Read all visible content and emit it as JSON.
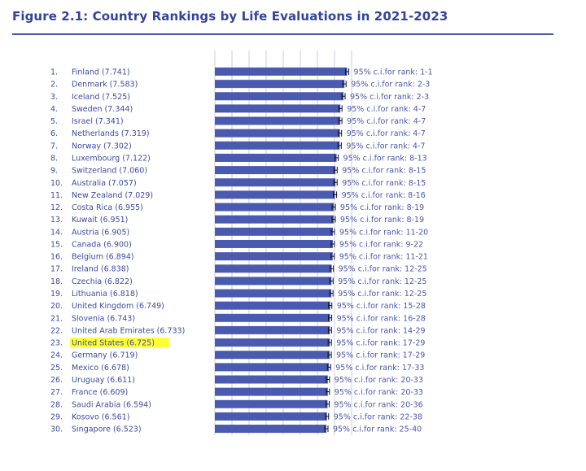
{
  "title": "Figure 2.1: Country Rankings by Life Evaluations in 2021-2023",
  "chart_data": {
    "type": "bar",
    "orientation": "horizontal",
    "title": "Figure 2.1: Country Rankings by Life Evaluations in 2021-2023",
    "xlim": [
      0,
      8
    ],
    "grid": true,
    "bar_color": "#4a5ab0",
    "highlight_color": "#ffff33",
    "highlighted": "United States",
    "ci_prefix": "95% c.i.for rank: ",
    "rows": [
      {
        "rank": 1,
        "country": "Finland",
        "value": 7.741,
        "ci": "1-1"
      },
      {
        "rank": 2,
        "country": "Denmark",
        "value": 7.583,
        "ci": "2-3"
      },
      {
        "rank": 3,
        "country": "Iceland",
        "value": 7.525,
        "ci": "2-3"
      },
      {
        "rank": 4,
        "country": "Sweden",
        "value": 7.344,
        "ci": "4-7"
      },
      {
        "rank": 5,
        "country": "Israel",
        "value": 7.341,
        "ci": "4-7"
      },
      {
        "rank": 6,
        "country": "Netherlands",
        "value": 7.319,
        "ci": "4-7"
      },
      {
        "rank": 7,
        "country": "Norway",
        "value": 7.302,
        "ci": "4-7"
      },
      {
        "rank": 8,
        "country": "Luxembourg",
        "value": 7.122,
        "ci": "8-13"
      },
      {
        "rank": 9,
        "country": "Switzerland",
        "value": 7.06,
        "ci": "8-15"
      },
      {
        "rank": 10,
        "country": "Australia",
        "value": 7.057,
        "ci": "8-15"
      },
      {
        "rank": 11,
        "country": "New Zealand",
        "value": 7.029,
        "ci": "8-16"
      },
      {
        "rank": 12,
        "country": "Costa Rica",
        "value": 6.955,
        "ci": "8-19"
      },
      {
        "rank": 13,
        "country": "Kuwait",
        "value": 6.951,
        "ci": "8-19"
      },
      {
        "rank": 14,
        "country": "Austria",
        "value": 6.905,
        "ci": "11-20"
      },
      {
        "rank": 15,
        "country": "Canada",
        "value": 6.9,
        "ci": "9-22"
      },
      {
        "rank": 16,
        "country": "Belgium",
        "value": 6.894,
        "ci": "11-21"
      },
      {
        "rank": 17,
        "country": "Ireland",
        "value": 6.838,
        "ci": "12-25"
      },
      {
        "rank": 18,
        "country": "Czechia",
        "value": 6.822,
        "ci": "12-25"
      },
      {
        "rank": 19,
        "country": "Lithuania",
        "value": 6.818,
        "ci": "12-25"
      },
      {
        "rank": 20,
        "country": "United Kingdom",
        "value": 6.749,
        "ci": "15-28"
      },
      {
        "rank": 21,
        "country": "Slovenia",
        "value": 6.743,
        "ci": "16-28"
      },
      {
        "rank": 22,
        "country": "United Arab Emirates",
        "value": 6.733,
        "ci": "14-29"
      },
      {
        "rank": 23,
        "country": "United States",
        "value": 6.725,
        "ci": "17-29"
      },
      {
        "rank": 24,
        "country": "Germany",
        "value": 6.719,
        "ci": "17-29"
      },
      {
        "rank": 25,
        "country": "Mexico",
        "value": 6.678,
        "ci": "17-33"
      },
      {
        "rank": 26,
        "country": "Uruguay",
        "value": 6.611,
        "ci": "20-33"
      },
      {
        "rank": 27,
        "country": "France",
        "value": 6.609,
        "ci": "20-33"
      },
      {
        "rank": 28,
        "country": "Saudi Arabia",
        "value": 6.594,
        "ci": "20-36"
      },
      {
        "rank": 29,
        "country": "Kosovo",
        "value": 6.561,
        "ci": "22-38"
      },
      {
        "rank": 30,
        "country": "Singapore",
        "value": 6.523,
        "ci": "25-40"
      }
    ]
  }
}
